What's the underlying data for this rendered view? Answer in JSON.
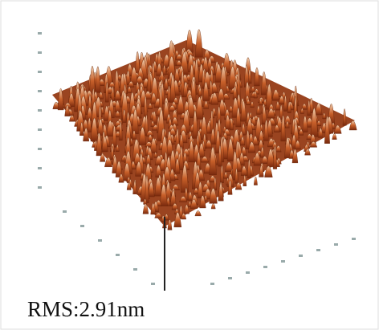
{
  "caption": "RMS:2.91nm"
}
